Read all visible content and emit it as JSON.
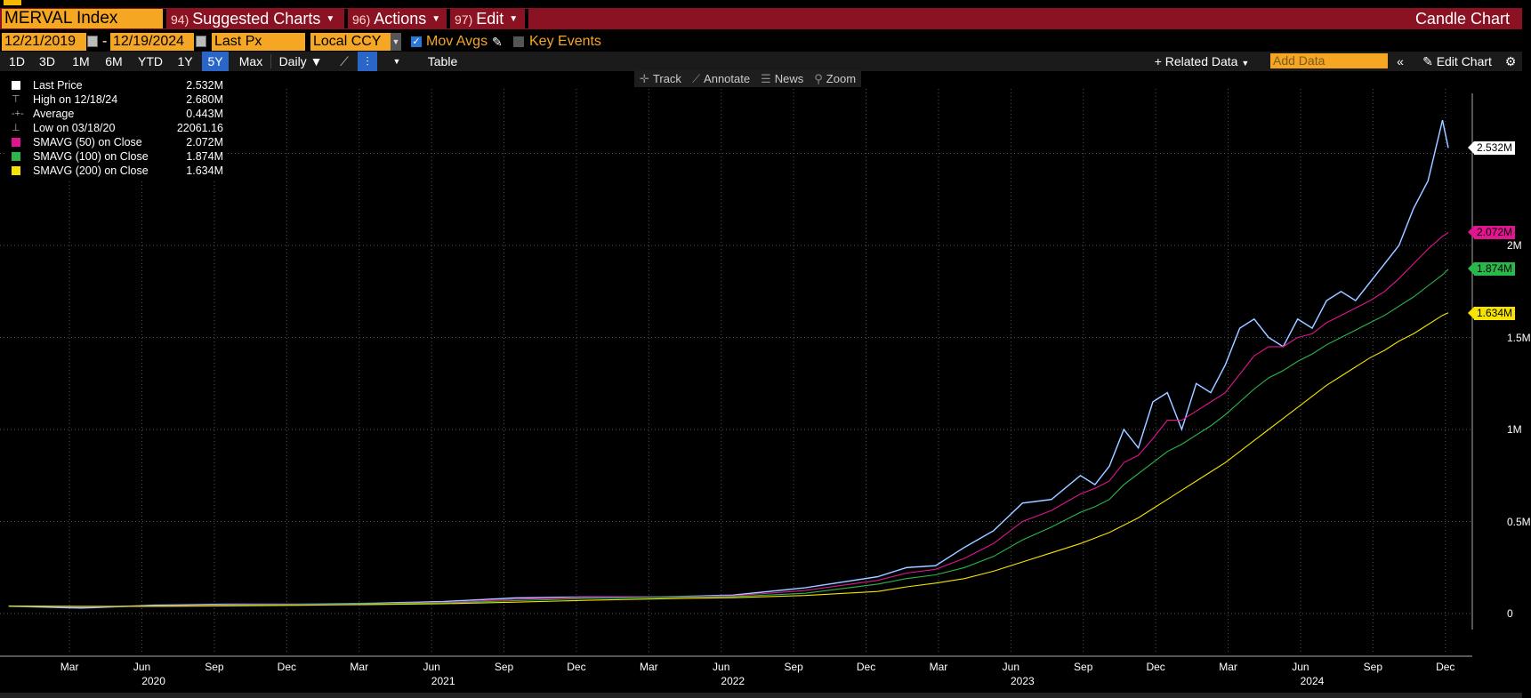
{
  "title_bar": {
    "ticker": "MERVAL Index",
    "menus": [
      {
        "num": "94)",
        "label": "Suggested Charts"
      },
      {
        "num": "96)",
        "label": "Actions"
      },
      {
        "num": "97)",
        "label": "Edit"
      }
    ],
    "right_title": "Candle Chart"
  },
  "params": {
    "start_date": "12/21/2019",
    "end_date": "12/19/2024",
    "field": "Last Px",
    "currency": "Local CCY",
    "mov_avgs_label": "Mov Avgs",
    "key_events_label": "Key Events"
  },
  "toolbar": {
    "periods": [
      "1D",
      "3D",
      "1M",
      "6M",
      "YTD",
      "1Y",
      "5Y",
      "Max"
    ],
    "active_period": "5Y",
    "frequency": "Daily ▼",
    "table_label": "Table",
    "related_data": "+ Related Data",
    "add_data_placeholder": "Add Data",
    "edit_chart": "Edit Chart"
  },
  "chart_tools": [
    "Track",
    "Annotate",
    "News",
    "Zoom"
  ],
  "legend": [
    {
      "label": "Last Price",
      "value": "2.532M",
      "color": "#ffffff",
      "kind": "box"
    },
    {
      "label": "High on 12/18/24",
      "value": "2.680M",
      "color": "#aaaaaa",
      "kind": "high"
    },
    {
      "label": "Average",
      "value": "0.443M",
      "color": "#aaaaaa",
      "kind": "avg"
    },
    {
      "label": "Low on 03/18/20",
      "value": "22061.16",
      "color": "#aaaaaa",
      "kind": "low"
    },
    {
      "label": "SMAVG (50)  on Close",
      "value": "2.072M",
      "color": "#e0158f",
      "kind": "box"
    },
    {
      "label": "SMAVG (100)  on Close",
      "value": "1.874M",
      "color": "#2ab84a",
      "kind": "box"
    },
    {
      "label": "SMAVG (200)  on Close",
      "value": "1.634M",
      "color": "#f5e400",
      "kind": "box"
    }
  ],
  "value_tags": [
    {
      "text": "2.532M",
      "bg": "#ffffff",
      "value": 2.532
    },
    {
      "text": "2.072M",
      "bg": "#e0158f",
      "value": 2.072
    },
    {
      "text": "1.874M",
      "bg": "#2ab84a",
      "value": 1.874
    },
    {
      "text": "1.634M",
      "bg": "#f5e400",
      "value": 1.634
    }
  ],
  "chart_data": {
    "type": "line",
    "title": "",
    "xlabel": "",
    "ylabel": "",
    "ylim": [
      0,
      2.9
    ],
    "y_ticks": [
      {
        "label": "0",
        "value": 0
      },
      {
        "label": "0.5M",
        "value": 0.5
      },
      {
        "label": "1M",
        "value": 1.0
      },
      {
        "label": "1.5M",
        "value": 1.5
      },
      {
        "label": "2M",
        "value": 2.0
      }
    ],
    "x_ticks": [
      "Mar",
      "Jun",
      "Sep",
      "Dec",
      "Mar",
      "Jun",
      "Sep",
      "Dec",
      "Mar",
      "Jun",
      "Sep",
      "Dec",
      "Mar",
      "Jun",
      "Sep",
      "Dec",
      "Mar",
      "Jun",
      "Sep",
      "Dec"
    ],
    "years": [
      "2020",
      "2021",
      "2022",
      "2023",
      "2024"
    ],
    "x": [
      2020.0,
      2020.25,
      2020.5,
      2020.75,
      2021.0,
      2021.25,
      2021.5,
      2021.75,
      2022.0,
      2022.25,
      2022.5,
      2022.75,
      2023.0,
      2023.1,
      2023.2,
      2023.3,
      2023.4,
      2023.5,
      2023.6,
      2023.7,
      2023.75,
      2023.8,
      2023.85,
      2023.9,
      2023.95,
      2024.0,
      2024.05,
      2024.1,
      2024.15,
      2024.2,
      2024.25,
      2024.3,
      2024.35,
      2024.4,
      2024.45,
      2024.5,
      2024.55,
      2024.6,
      2024.65,
      2024.7,
      2024.75,
      2024.8,
      2024.85,
      2024.9,
      2024.95,
      2024.97
    ],
    "series": [
      {
        "name": "Last Price",
        "color": "#5fa0ff",
        "values": [
          0.04,
          0.03,
          0.045,
          0.05,
          0.05,
          0.055,
          0.065,
          0.085,
          0.09,
          0.09,
          0.1,
          0.14,
          0.2,
          0.25,
          0.26,
          0.36,
          0.45,
          0.6,
          0.62,
          0.75,
          0.7,
          0.8,
          1.0,
          0.9,
          1.15,
          1.2,
          1.0,
          1.25,
          1.2,
          1.35,
          1.55,
          1.6,
          1.5,
          1.45,
          1.6,
          1.55,
          1.7,
          1.75,
          1.7,
          1.8,
          1.9,
          2.0,
          2.2,
          2.35,
          2.68,
          2.53
        ]
      },
      {
        "name": "SMAVG (50)",
        "color": "#e0158f",
        "values": [
          0.04,
          0.037,
          0.04,
          0.047,
          0.05,
          0.053,
          0.06,
          0.078,
          0.088,
          0.09,
          0.096,
          0.125,
          0.18,
          0.22,
          0.24,
          0.3,
          0.38,
          0.5,
          0.56,
          0.65,
          0.68,
          0.72,
          0.82,
          0.86,
          0.95,
          1.05,
          1.05,
          1.1,
          1.15,
          1.2,
          1.3,
          1.4,
          1.45,
          1.45,
          1.5,
          1.52,
          1.58,
          1.62,
          1.66,
          1.7,
          1.75,
          1.82,
          1.9,
          1.98,
          2.05,
          2.07
        ]
      },
      {
        "name": "SMAVG (100)",
        "color": "#2ab84a",
        "values": [
          0.04,
          0.038,
          0.039,
          0.044,
          0.049,
          0.052,
          0.057,
          0.07,
          0.082,
          0.088,
          0.092,
          0.11,
          0.16,
          0.19,
          0.21,
          0.25,
          0.31,
          0.4,
          0.47,
          0.55,
          0.58,
          0.62,
          0.7,
          0.76,
          0.82,
          0.88,
          0.92,
          0.97,
          1.02,
          1.08,
          1.15,
          1.22,
          1.28,
          1.32,
          1.37,
          1.41,
          1.46,
          1.5,
          1.54,
          1.58,
          1.62,
          1.67,
          1.72,
          1.78,
          1.84,
          1.87
        ]
      },
      {
        "name": "SMAVG (200)",
        "color": "#f5e400",
        "values": [
          0.04,
          0.039,
          0.039,
          0.041,
          0.045,
          0.049,
          0.053,
          0.062,
          0.072,
          0.08,
          0.086,
          0.098,
          0.12,
          0.145,
          0.165,
          0.19,
          0.23,
          0.28,
          0.33,
          0.38,
          0.41,
          0.44,
          0.48,
          0.52,
          0.57,
          0.62,
          0.67,
          0.72,
          0.77,
          0.82,
          0.88,
          0.94,
          1.0,
          1.06,
          1.12,
          1.18,
          1.24,
          1.29,
          1.34,
          1.39,
          1.43,
          1.48,
          1.52,
          1.57,
          1.62,
          1.634
        ]
      }
    ]
  }
}
